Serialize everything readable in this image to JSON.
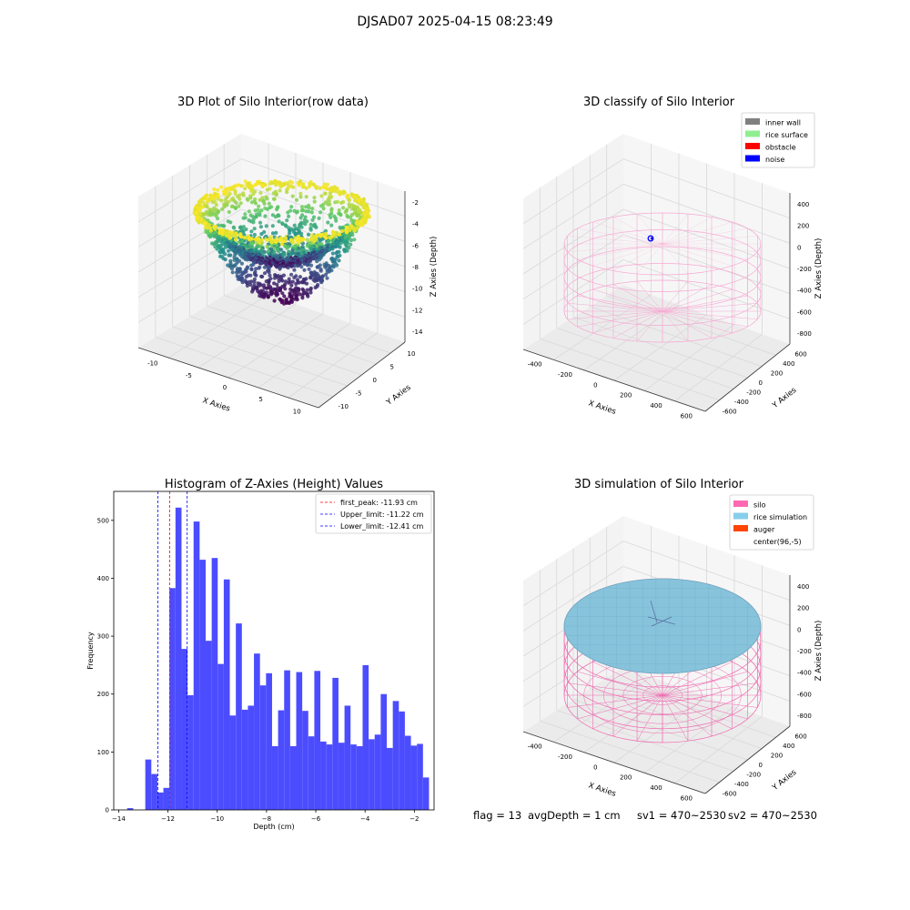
{
  "figure": {
    "title": "DJSAD07 2025-04-15 08:23:49",
    "status": {
      "flag": "flag = 13",
      "avg_depth": "avgDepth = 1 cm",
      "sv1": "sv1 = 470~2530",
      "sv2": "sv2 = 470~2530"
    },
    "colors": {
      "pane": "#f2f2f2",
      "grid": "#d9d9d9",
      "silo_wire": "#f06ab0",
      "silo_wire_light": "#f7a8d2",
      "rice_surface": "#87c4dc",
      "hist_bar": "#4c4cff"
    }
  },
  "chart_data": [
    {
      "type": "scatter",
      "subtype": "3d",
      "title": "3D Plot of Silo Interior(row data)",
      "xlabel": "X Axies",
      "ylabel": "Y Axies",
      "zlabel": "Z Axies (Depth)",
      "xticks": [
        "-10",
        "-5",
        "0",
        "5",
        "10"
      ],
      "yticks": [
        "-10",
        "-5",
        "0",
        "5",
        "10"
      ],
      "zticks": [
        "-2",
        "-4",
        "-6",
        "-8",
        "-10",
        "-12",
        "-14"
      ],
      "xlim": [
        -14,
        14
      ],
      "ylim": [
        -14,
        14
      ],
      "zlim": [
        -15,
        -1
      ],
      "colormap": "viridis",
      "description_values": {
        "shape": "bowl",
        "rim_depth": -2,
        "bottom_depth": -14,
        "rim_radius": 11
      }
    },
    {
      "type": "scatter",
      "subtype": "3d",
      "title": "3D classify of Silo Interior",
      "xlabel": "X Axies",
      "ylabel": "Y Axies",
      "zlabel": "Z Axies (Depth)",
      "xticks": [
        "-400",
        "-200",
        "0",
        "200",
        "400",
        "600"
      ],
      "yticks": [
        "-600",
        "-400",
        "-200",
        "0",
        "200",
        "400",
        "600"
      ],
      "zticks": [
        "400",
        "200",
        "0",
        "-200",
        "-400",
        "-600",
        "-800"
      ],
      "legend": {
        "position": "top-right",
        "entries": [
          {
            "label": "inner wall",
            "color": "#808080"
          },
          {
            "label": "rice surface",
            "color": "#90ee90"
          },
          {
            "label": "obstacle",
            "color": "#ff0000"
          },
          {
            "label": "noise",
            "color": "#0000ff"
          }
        ]
      }
    },
    {
      "type": "bar",
      "subtype": "histogram",
      "title": "Histogram of Z-Axies (Height) Values",
      "xlabel": "Depth (cm)",
      "ylabel": "Frequency",
      "xlim": [
        -14.2,
        -1.2
      ],
      "ylim": [
        0,
        550
      ],
      "xticks": [
        -14,
        -12,
        -10,
        -8,
        -6,
        -4,
        -2
      ],
      "yticks": [
        0,
        100,
        200,
        300,
        400,
        500
      ],
      "bins_start": -13.9,
      "bin_width": 0.245,
      "values": [
        0,
        3,
        0,
        0,
        87,
        62,
        30,
        38,
        383,
        522,
        278,
        198,
        498,
        432,
        292,
        435,
        252,
        398,
        163,
        322,
        173,
        180,
        270,
        215,
        236,
        110,
        172,
        241,
        110,
        238,
        171,
        127,
        240,
        118,
        113,
        228,
        116,
        180,
        113,
        110,
        250,
        122,
        130,
        200,
        107,
        188,
        170,
        128,
        111,
        114,
        56
      ],
      "vlines": [
        {
          "label": "first_peak: -11.93 cm",
          "x": -11.93,
          "color": "#ff0000"
        },
        {
          "label": "Upper_limit: -11.22 cm",
          "x": -11.22,
          "color": "#0000ff"
        },
        {
          "label": "Lower_limit: -12.41 cm",
          "x": -12.41,
          "color": "#0000ff"
        }
      ],
      "legend_position": "top-right"
    },
    {
      "type": "scatter",
      "subtype": "3d",
      "title": "3D simulation of Silo Interior",
      "xlabel": "X Axies",
      "ylabel": "Y Axies",
      "zlabel": "Z Axies (Depth)",
      "xticks": [
        "-400",
        "-200",
        "0",
        "200",
        "400",
        "600"
      ],
      "yticks": [
        "-600",
        "-400",
        "-200",
        "0",
        "200",
        "400",
        "600"
      ],
      "zticks": [
        "400",
        "200",
        "0",
        "-200",
        "-400",
        "-600",
        "-800"
      ],
      "legend": {
        "position": "top-right",
        "entries": [
          {
            "label": "silo",
            "color": "#ff69b4"
          },
          {
            "label": "rice simulation",
            "color": "#87ceeb"
          },
          {
            "label": "auger",
            "color": "#ff4500"
          },
          {
            "label": "center(96,-5)",
            "color": ""
          }
        ]
      }
    }
  ]
}
